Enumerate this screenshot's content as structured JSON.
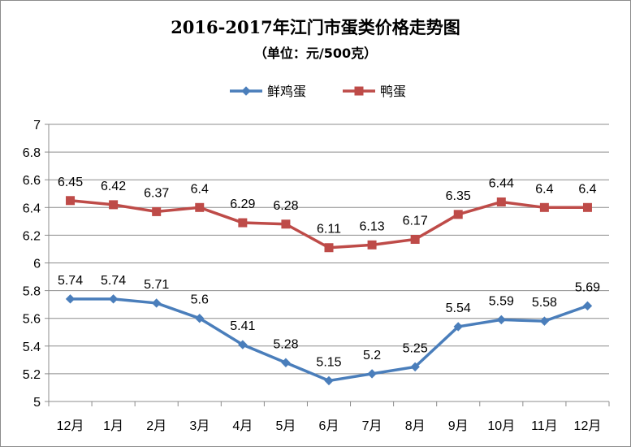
{
  "chart_data": {
    "type": "line",
    "title": "2016-2017年江门市蛋类价格走势图",
    "subtitle": "（单位：元/500克）",
    "categories": [
      "12月",
      "1月",
      "2月",
      "3月",
      "4月",
      "5月",
      "6月",
      "7月",
      "8月",
      "9月",
      "10月",
      "11月",
      "12月"
    ],
    "series": [
      {
        "name": "鲜鸡蛋",
        "color": "#4a7ebb",
        "marker": "diamond",
        "values": [
          5.74,
          5.74,
          5.71,
          5.6,
          5.41,
          5.28,
          5.15,
          5.2,
          5.25,
          5.54,
          5.59,
          5.58,
          5.69
        ],
        "labels": [
          "5.74",
          "5.74",
          "5.71",
          "5.6",
          "5.41",
          "5.28",
          "5.15",
          "5.2",
          "5.25",
          "5.54",
          "5.59",
          "5.58",
          "5.69"
        ]
      },
      {
        "name": "鸭蛋",
        "color": "#be4b48",
        "marker": "square",
        "values": [
          6.45,
          6.42,
          6.37,
          6.4,
          6.29,
          6.28,
          6.11,
          6.13,
          6.17,
          6.35,
          6.44,
          6.4,
          6.4
        ],
        "labels": [
          "6.45",
          "6.42",
          "6.37",
          "6.4",
          "6.29",
          "6.28",
          "6.11",
          "6.13",
          "6.17",
          "6.35",
          "6.44",
          "6.4",
          "6.4"
        ]
      }
    ],
    "ylim": [
      5,
      7
    ],
    "yticks": [
      "5",
      "5.2",
      "5.4",
      "5.6",
      "5.8",
      "6",
      "6.2",
      "6.4",
      "6.6",
      "6.8",
      "7"
    ],
    "grid": true,
    "legend_position": "top"
  }
}
